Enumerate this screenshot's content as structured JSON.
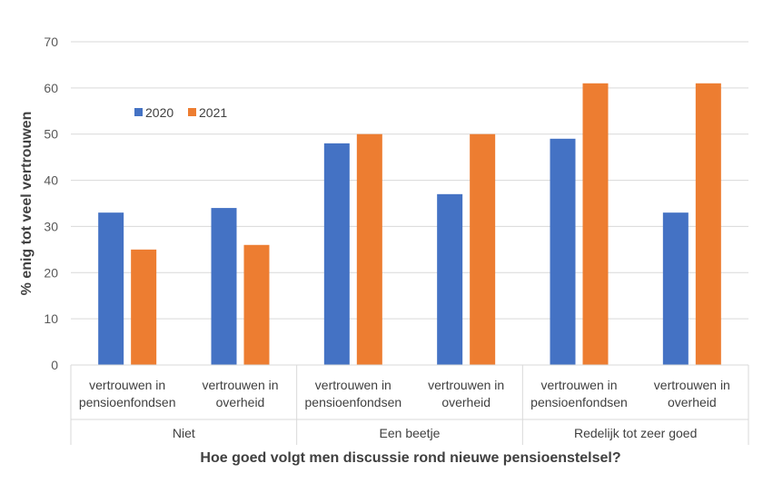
{
  "chart_data": {
    "type": "bar",
    "title": "",
    "xlabel": "Hoe goed volgt men discussie rond nieuwe pensioenstelsel?",
    "ylabel": "% enig tot veel vertrouwen",
    "ylim": [
      0,
      70
    ],
    "yticks": [
      0,
      10,
      20,
      30,
      40,
      50,
      60,
      70
    ],
    "grid": true,
    "legend_position": "top-left",
    "groups": [
      {
        "label": "Niet",
        "categories": [
          {
            "line1": "vertrouwen in",
            "line2": "pensioenfondsen"
          },
          {
            "line1": "vertrouwen in",
            "line2": "overheid"
          }
        ]
      },
      {
        "label": "Een beetje",
        "categories": [
          {
            "line1": "vertrouwen in",
            "line2": "pensioenfondsen"
          },
          {
            "line1": "vertrouwen in",
            "line2": "overheid"
          }
        ]
      },
      {
        "label": "Redelijk tot zeer goed",
        "categories": [
          {
            "line1": "vertrouwen in",
            "line2": "pensioenfondsen"
          },
          {
            "line1": "vertrouwen in",
            "line2": "overheid"
          }
        ]
      }
    ],
    "series": [
      {
        "name": "2020",
        "color": "#4472C4",
        "values": [
          33,
          34,
          48,
          37,
          49,
          33
        ]
      },
      {
        "name": "2021",
        "color": "#ED7D31",
        "values": [
          25,
          26,
          50,
          50,
          61,
          61
        ]
      }
    ]
  }
}
